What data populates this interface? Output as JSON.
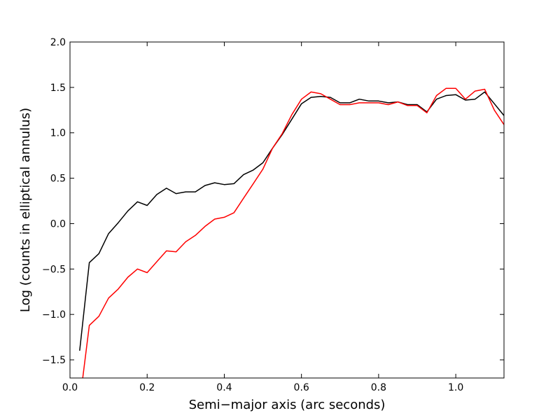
{
  "chart_data": {
    "type": "line",
    "title": "",
    "xlabel": "Semi−major axis (arc seconds)",
    "ylabel": "Log (counts in elliptical annulus)",
    "xlim": [
      0.0,
      1.125
    ],
    "ylim": [
      -1.7,
      2.0
    ],
    "xticks": [
      0.0,
      0.2,
      0.4,
      0.6,
      0.8,
      1.0
    ],
    "xtick_labels": [
      "0.0",
      "0.2",
      "0.4",
      "0.6",
      "0.8",
      "1.0"
    ],
    "yticks": [
      -1.5,
      -1.0,
      -0.5,
      0.0,
      0.5,
      1.0,
      1.5,
      2.0
    ],
    "ytick_labels": [
      "−1.5",
      "−1.0",
      "−0.5",
      "0.0",
      "0.5",
      "1.0",
      "1.5",
      "2.0"
    ],
    "grid": false,
    "legend": "none",
    "series": [
      {
        "color": "#000000",
        "x": [
          0.025,
          0.05,
          0.075,
          0.1,
          0.125,
          0.15,
          0.175,
          0.2,
          0.225,
          0.25,
          0.275,
          0.3,
          0.325,
          0.35,
          0.375,
          0.4,
          0.425,
          0.45,
          0.475,
          0.5,
          0.525,
          0.55,
          0.575,
          0.6,
          0.625,
          0.65,
          0.675,
          0.7,
          0.725,
          0.75,
          0.775,
          0.8,
          0.825,
          0.85,
          0.875,
          0.9,
          0.925,
          0.95,
          0.975,
          1.0,
          1.025,
          1.05,
          1.075,
          1.1,
          1.125
        ],
        "values": [
          -1.4,
          -0.43,
          -0.33,
          -0.11,
          0.01,
          0.14,
          0.24,
          0.2,
          0.32,
          0.39,
          0.33,
          0.35,
          0.35,
          0.42,
          0.45,
          0.43,
          0.44,
          0.54,
          0.59,
          0.67,
          0.83,
          0.98,
          1.15,
          1.32,
          1.39,
          1.4,
          1.39,
          1.33,
          1.33,
          1.37,
          1.35,
          1.35,
          1.33,
          1.34,
          1.31,
          1.31,
          1.23,
          1.37,
          1.41,
          1.42,
          1.36,
          1.37,
          1.45,
          1.32,
          1.19
        ]
      },
      {
        "color": "#ff0000",
        "x": [
          0.033,
          0.05,
          0.075,
          0.1,
          0.125,
          0.15,
          0.175,
          0.2,
          0.225,
          0.25,
          0.275,
          0.3,
          0.325,
          0.35,
          0.375,
          0.4,
          0.425,
          0.45,
          0.475,
          0.5,
          0.525,
          0.55,
          0.575,
          0.6,
          0.625,
          0.65,
          0.675,
          0.7,
          0.725,
          0.75,
          0.775,
          0.8,
          0.825,
          0.85,
          0.875,
          0.9,
          0.925,
          0.95,
          0.975,
          1.0,
          1.025,
          1.05,
          1.075,
          1.1,
          1.125
        ],
        "values": [
          -1.7,
          -1.12,
          -1.02,
          -0.82,
          -0.72,
          -0.59,
          -0.5,
          -0.54,
          -0.42,
          -0.3,
          -0.31,
          -0.2,
          -0.13,
          -0.03,
          0.05,
          0.07,
          0.12,
          0.28,
          0.44,
          0.6,
          0.83,
          0.99,
          1.2,
          1.37,
          1.45,
          1.43,
          1.37,
          1.31,
          1.31,
          1.33,
          1.33,
          1.33,
          1.31,
          1.34,
          1.3,
          1.3,
          1.22,
          1.41,
          1.49,
          1.49,
          1.37,
          1.46,
          1.48,
          1.25,
          1.09
        ]
      }
    ]
  }
}
